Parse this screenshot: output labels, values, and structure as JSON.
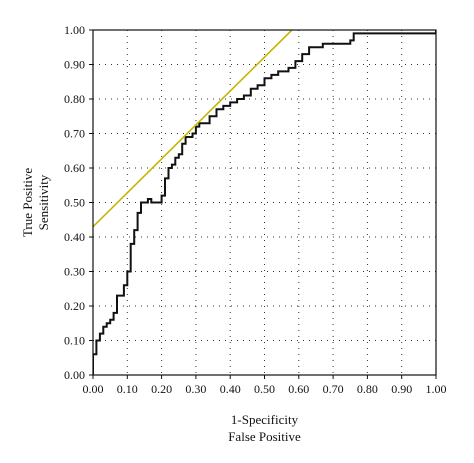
{
  "chart_data": {
    "type": "line",
    "xlabel": [
      "1-Specificity",
      "False Positive"
    ],
    "ylabel": [
      "True Positive",
      "Sensitivity"
    ],
    "xlim": [
      0,
      1
    ],
    "ylim": [
      0,
      1
    ],
    "xticks": [
      "0.00",
      "0.10",
      "0.20",
      "0.30",
      "0.40",
      "0.50",
      "0.60",
      "0.70",
      "0.80",
      "0.90",
      "1.00"
    ],
    "yticks": [
      "0.00",
      "0.10",
      "0.20",
      "0.30",
      "0.40",
      "0.50",
      "0.60",
      "0.70",
      "0.80",
      "0.90",
      "1.00"
    ],
    "grid": true,
    "legend": "none",
    "series": [
      {
        "kind": "step",
        "color": "#111111",
        "points": [
          [
            0.0,
            0.0
          ],
          [
            0.0,
            0.06
          ],
          [
            0.01,
            0.06
          ],
          [
            0.01,
            0.1
          ],
          [
            0.02,
            0.1
          ],
          [
            0.02,
            0.12
          ],
          [
            0.03,
            0.12
          ],
          [
            0.03,
            0.14
          ],
          [
            0.04,
            0.14
          ],
          [
            0.04,
            0.15
          ],
          [
            0.05,
            0.15
          ],
          [
            0.05,
            0.16
          ],
          [
            0.06,
            0.16
          ],
          [
            0.06,
            0.18
          ],
          [
            0.07,
            0.18
          ],
          [
            0.07,
            0.23
          ],
          [
            0.09,
            0.23
          ],
          [
            0.09,
            0.26
          ],
          [
            0.1,
            0.26
          ],
          [
            0.1,
            0.3
          ],
          [
            0.11,
            0.3
          ],
          [
            0.11,
            0.38
          ],
          [
            0.12,
            0.38
          ],
          [
            0.12,
            0.42
          ],
          [
            0.13,
            0.42
          ],
          [
            0.13,
            0.47
          ],
          [
            0.14,
            0.47
          ],
          [
            0.14,
            0.5
          ],
          [
            0.16,
            0.5
          ],
          [
            0.16,
            0.51
          ],
          [
            0.17,
            0.51
          ],
          [
            0.17,
            0.5
          ],
          [
            0.2,
            0.5
          ],
          [
            0.2,
            0.52
          ],
          [
            0.21,
            0.52
          ],
          [
            0.21,
            0.57
          ],
          [
            0.22,
            0.57
          ],
          [
            0.22,
            0.6
          ],
          [
            0.23,
            0.6
          ],
          [
            0.23,
            0.61
          ],
          [
            0.24,
            0.61
          ],
          [
            0.24,
            0.63
          ],
          [
            0.25,
            0.63
          ],
          [
            0.25,
            0.64
          ],
          [
            0.26,
            0.64
          ],
          [
            0.26,
            0.67
          ],
          [
            0.27,
            0.67
          ],
          [
            0.27,
            0.69
          ],
          [
            0.29,
            0.69
          ],
          [
            0.29,
            0.7
          ],
          [
            0.3,
            0.7
          ],
          [
            0.3,
            0.72
          ],
          [
            0.31,
            0.72
          ],
          [
            0.31,
            0.73
          ],
          [
            0.34,
            0.73
          ],
          [
            0.34,
            0.75
          ],
          [
            0.36,
            0.75
          ],
          [
            0.36,
            0.77
          ],
          [
            0.38,
            0.77
          ],
          [
            0.38,
            0.78
          ],
          [
            0.4,
            0.78
          ],
          [
            0.4,
            0.79
          ],
          [
            0.42,
            0.79
          ],
          [
            0.42,
            0.8
          ],
          [
            0.44,
            0.8
          ],
          [
            0.44,
            0.81
          ],
          [
            0.46,
            0.81
          ],
          [
            0.46,
            0.83
          ],
          [
            0.48,
            0.83
          ],
          [
            0.48,
            0.84
          ],
          [
            0.5,
            0.84
          ],
          [
            0.5,
            0.86
          ],
          [
            0.52,
            0.86
          ],
          [
            0.52,
            0.87
          ],
          [
            0.54,
            0.87
          ],
          [
            0.54,
            0.88
          ],
          [
            0.57,
            0.88
          ],
          [
            0.57,
            0.89
          ],
          [
            0.59,
            0.89
          ],
          [
            0.59,
            0.91
          ],
          [
            0.61,
            0.91
          ],
          [
            0.61,
            0.93
          ],
          [
            0.63,
            0.93
          ],
          [
            0.63,
            0.95
          ],
          [
            0.67,
            0.95
          ],
          [
            0.67,
            0.96
          ],
          [
            0.75,
            0.96
          ],
          [
            0.75,
            0.97
          ],
          [
            0.76,
            0.97
          ],
          [
            0.76,
            0.99
          ],
          [
            1.0,
            0.99
          ],
          [
            1.0,
            1.0
          ]
        ]
      },
      {
        "kind": "line",
        "color": "#c8b400",
        "points": [
          [
            0.0,
            0.43
          ],
          [
            0.58,
            1.0
          ]
        ]
      }
    ]
  }
}
